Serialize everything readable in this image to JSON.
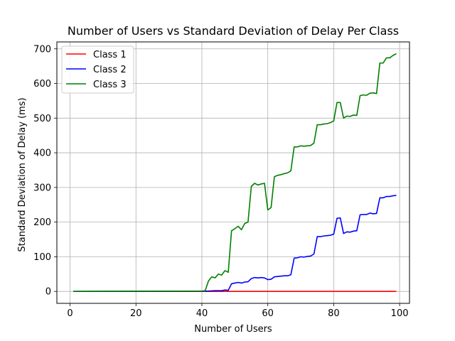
{
  "chart_data": {
    "type": "line",
    "title": "Number of Users vs Standard Deviation of Delay Per Class",
    "xlabel": "Number of Users",
    "ylabel": "Standard Deviation of Delay (ms)",
    "xlim": [
      -4,
      103
    ],
    "ylim": [
      -34.5,
      720
    ],
    "x_ticks": [
      0,
      20,
      40,
      60,
      80,
      100
    ],
    "y_ticks": [
      0,
      100,
      200,
      300,
      400,
      500,
      600,
      700
    ],
    "grid": true,
    "legend_position": "top-left",
    "series": [
      {
        "name": "Class 1",
        "color": "#ff0000",
        "points": [
          [
            1,
            0
          ],
          [
            99,
            0
          ]
        ]
      },
      {
        "name": "Class 2",
        "color": "#0000ff",
        "points": [
          [
            1,
            0
          ],
          [
            40,
            0.5
          ],
          [
            42,
            1
          ],
          [
            44,
            2
          ],
          [
            46,
            2
          ],
          [
            47,
            4
          ],
          [
            48,
            3
          ],
          [
            49,
            22
          ],
          [
            50,
            24
          ],
          [
            51,
            26
          ],
          [
            52,
            24
          ],
          [
            53,
            27
          ],
          [
            54,
            28
          ],
          [
            55,
            37
          ],
          [
            56,
            40
          ],
          [
            57,
            39
          ],
          [
            58,
            40
          ],
          [
            59,
            39
          ],
          [
            60,
            34
          ],
          [
            61,
            35
          ],
          [
            62,
            42
          ],
          [
            63,
            43
          ],
          [
            64,
            44
          ],
          [
            65,
            45
          ],
          [
            66,
            45
          ],
          [
            67,
            48
          ],
          [
            68,
            96
          ],
          [
            69,
            97
          ],
          [
            70,
            100
          ],
          [
            71,
            99
          ],
          [
            72,
            101
          ],
          [
            73,
            102
          ],
          [
            74,
            108
          ],
          [
            75,
            158
          ],
          [
            76,
            158
          ],
          [
            77,
            160
          ],
          [
            78,
            161
          ],
          [
            79,
            162
          ],
          [
            80,
            165
          ],
          [
            81,
            211
          ],
          [
            82,
            212
          ],
          [
            83,
            167
          ],
          [
            84,
            172
          ],
          [
            85,
            171
          ],
          [
            86,
            174
          ],
          [
            87,
            175
          ],
          [
            88,
            221
          ],
          [
            89,
            222
          ],
          [
            90,
            222
          ],
          [
            91,
            226
          ],
          [
            92,
            224
          ],
          [
            93,
            225
          ],
          [
            94,
            270
          ],
          [
            95,
            270
          ],
          [
            96,
            274
          ],
          [
            97,
            274
          ],
          [
            98,
            276
          ],
          [
            99,
            277
          ]
        ]
      },
      {
        "name": "Class 3",
        "color": "#008000",
        "points": [
          [
            1,
            0
          ],
          [
            40,
            1
          ],
          [
            41,
            2
          ],
          [
            42,
            30
          ],
          [
            43,
            42
          ],
          [
            44,
            39
          ],
          [
            45,
            50
          ],
          [
            46,
            47
          ],
          [
            47,
            60
          ],
          [
            48,
            55
          ],
          [
            49,
            175
          ],
          [
            50,
            181
          ],
          [
            51,
            188
          ],
          [
            52,
            178
          ],
          [
            53,
            196
          ],
          [
            54,
            200
          ],
          [
            55,
            303
          ],
          [
            56,
            312
          ],
          [
            57,
            307
          ],
          [
            58,
            310
          ],
          [
            59,
            312
          ],
          [
            60,
            235
          ],
          [
            61,
            242
          ],
          [
            62,
            331
          ],
          [
            63,
            335
          ],
          [
            64,
            337
          ],
          [
            65,
            340
          ],
          [
            66,
            342
          ],
          [
            67,
            348
          ],
          [
            68,
            417
          ],
          [
            69,
            417
          ],
          [
            70,
            420
          ],
          [
            71,
            419
          ],
          [
            72,
            420
          ],
          [
            73,
            421
          ],
          [
            74,
            428
          ],
          [
            75,
            481
          ],
          [
            76,
            481
          ],
          [
            77,
            483
          ],
          [
            78,
            484
          ],
          [
            79,
            487
          ],
          [
            80,
            492
          ],
          [
            81,
            545
          ],
          [
            82,
            545
          ],
          [
            83,
            500
          ],
          [
            84,
            506
          ],
          [
            85,
            505
          ],
          [
            86,
            509
          ],
          [
            87,
            508
          ],
          [
            88,
            565
          ],
          [
            89,
            567
          ],
          [
            90,
            566
          ],
          [
            91,
            572
          ],
          [
            92,
            573
          ],
          [
            93,
            571
          ],
          [
            94,
            659
          ],
          [
            95,
            659
          ],
          [
            96,
            674
          ],
          [
            97,
            674
          ],
          [
            98,
            681
          ],
          [
            99,
            686
          ]
        ]
      }
    ]
  }
}
